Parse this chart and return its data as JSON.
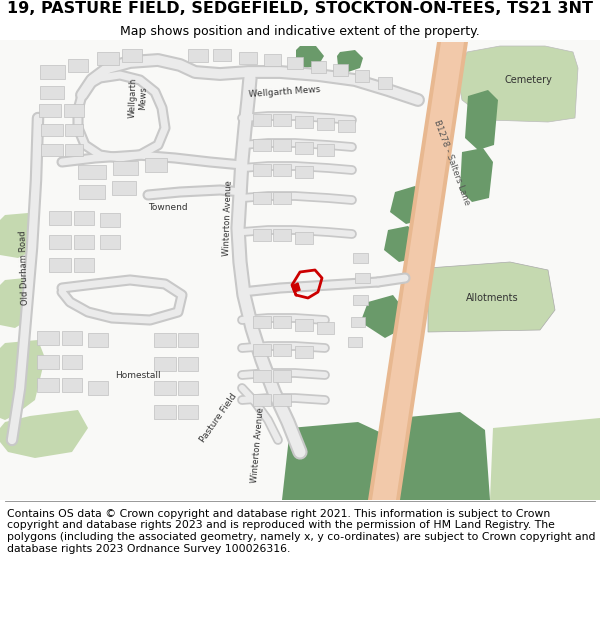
{
  "title": "19, PASTURE FIELD, SEDGEFIELD, STOCKTON-ON-TEES, TS21 3NT",
  "subtitle": "Map shows position and indicative extent of the property.",
  "footer": "Contains OS data © Crown copyright and database right 2021. This information is subject to Crown copyright and database rights 2023 and is reproduced with the permission of HM Land Registry. The polygons (including the associated geometry, namely x, y co-ordinates) are subject to Crown copyright and database rights 2023 Ordnance Survey 100026316.",
  "bg_color": "#ffffff",
  "map_bg": "#f9f9f7",
  "road_main_fill": "#f2c9aa",
  "road_main_edge": "#e8b890",
  "road_local_fill": "#e8e8e8",
  "road_local_edge": "#c8c8c8",
  "green_light": "#c5d9b0",
  "green_dark": "#6a9a6a",
  "building_fill": "#e0e0e0",
  "building_edge": "#c0c0c0",
  "plot_red": "#cc0000",
  "text_dark": "#333333",
  "title_size": 11.5,
  "subtitle_size": 9,
  "footer_size": 7.8,
  "map_label_size": 6.5,
  "map_label_small": 6.0
}
